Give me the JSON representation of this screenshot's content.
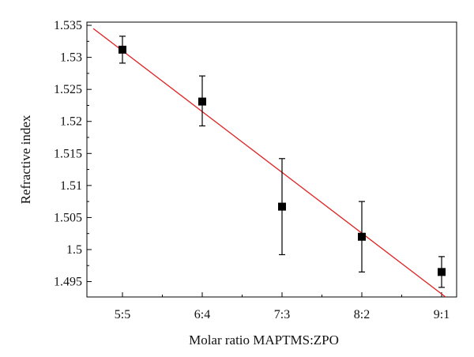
{
  "chart_data": {
    "type": "scatter",
    "title": "",
    "xlabel": "Molar ratio MAPTMS:ZPO",
    "ylabel": "Refractive index",
    "categories": [
      "5:5",
      "6:4",
      "7:3",
      "8:2",
      "9:1"
    ],
    "y_ticks": [
      "1.495",
      "1.5",
      "1.505",
      "1.51",
      "1.515",
      "1.52",
      "1.525",
      "1.53",
      "1.535"
    ],
    "ylim": [
      1.4926,
      1.5355
    ],
    "grid": false,
    "series": [
      {
        "marker": "square",
        "color": "#000000",
        "values": [
          1.5312,
          1.5231,
          1.5067,
          1.502,
          1.4965
        ],
        "error_low": [
          1.5291,
          1.5193,
          1.4992,
          1.4965,
          1.4941
        ],
        "error_high": [
          1.5333,
          1.5271,
          1.5142,
          1.5075,
          1.4989
        ]
      }
    ],
    "fit_line": {
      "color": "#e02020",
      "y_at_left_edge": 1.5345,
      "y_at_right_edge": 1.4926
    }
  }
}
